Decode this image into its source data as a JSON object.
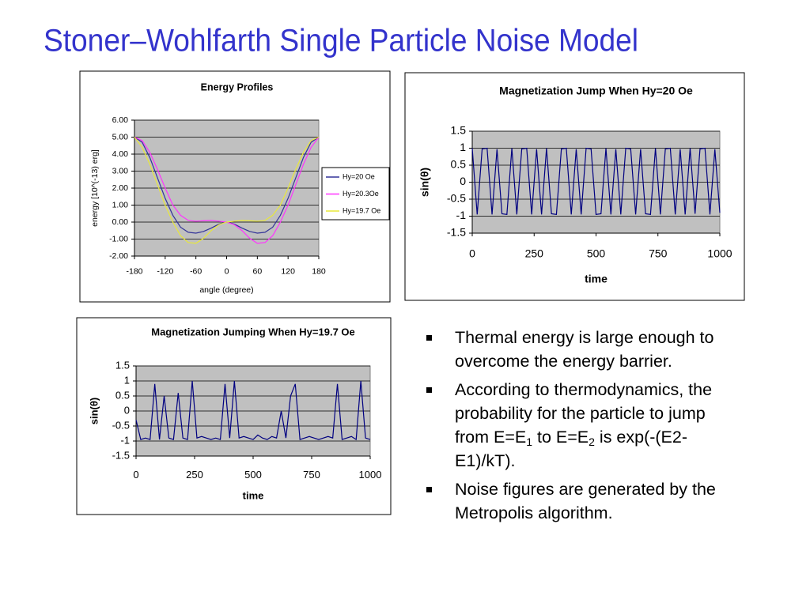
{
  "title": "Stoner–Wohlfarth Single Particle Noise Model",
  "chart_data": [
    {
      "type": "line",
      "title": "Energy Profiles",
      "x_label": "angle (degree)",
      "y_label": "energy [10^(-13) erg]",
      "x": [
        -180,
        -165,
        -150,
        -135,
        -120,
        -105,
        -90,
        -75,
        -60,
        -45,
        -30,
        -15,
        0,
        15,
        30,
        45,
        60,
        75,
        90,
        105,
        120,
        135,
        150,
        165,
        180
      ],
      "series": [
        {
          "name": "Hy=20 Oe",
          "color": "#333399",
          "values": [
            5.0,
            4.7,
            3.8,
            2.6,
            1.4,
            0.4,
            -0.3,
            -0.6,
            -0.65,
            -0.55,
            -0.35,
            -0.12,
            0,
            -0.12,
            -0.35,
            -0.55,
            -0.65,
            -0.6,
            -0.3,
            0.4,
            1.4,
            2.6,
            3.8,
            4.7,
            5.0
          ]
        },
        {
          "name": "Hy=20.3Oe",
          "color": "#ff33ff",
          "values": [
            5.0,
            4.8,
            4.1,
            3.1,
            2.0,
            1.0,
            0.4,
            0.1,
            0.05,
            0.08,
            0.1,
            0.05,
            0,
            -0.15,
            -0.5,
            -0.95,
            -1.25,
            -1.2,
            -0.8,
            0,
            1.0,
            2.2,
            3.4,
            4.4,
            5.0
          ]
        },
        {
          "name": "Hy=19.7 Oe",
          "color": "#e8e83a",
          "values": [
            5.0,
            4.4,
            3.4,
            2.2,
            1.0,
            0,
            -0.8,
            -1.2,
            -1.25,
            -0.95,
            -0.5,
            -0.15,
            0,
            0.05,
            0.1,
            0.08,
            0.05,
            0.1,
            0.4,
            1.0,
            2.0,
            3.1,
            4.1,
            4.8,
            5.0
          ]
        }
      ],
      "xlim": [
        -180,
        180
      ],
      "xticks": [
        -180,
        -120,
        -60,
        0,
        60,
        120,
        180
      ],
      "ylim": [
        -2,
        6
      ],
      "yticks": [
        {
          "value": -2,
          "label": "-2.00"
        },
        {
          "value": -1,
          "label": "-1.00"
        },
        {
          "value": 0,
          "label": "0.00"
        },
        {
          "value": 1,
          "label": "1.00"
        },
        {
          "value": 2,
          "label": "2.00"
        },
        {
          "value": 3,
          "label": "3.00"
        },
        {
          "value": 4,
          "label": "4.00"
        },
        {
          "value": 5,
          "label": "5.00"
        },
        {
          "value": 6,
          "label": "6.00"
        }
      ],
      "grid": true,
      "legend": "right"
    },
    {
      "type": "line",
      "title": "Magnetization Jump When Hy=20 Oe",
      "x_label": "time",
      "y_label": "sin(θ)",
      "x": [
        0,
        20,
        40,
        60,
        80,
        100,
        120,
        140,
        160,
        180,
        200,
        220,
        240,
        260,
        280,
        300,
        320,
        340,
        360,
        380,
        400,
        420,
        440,
        460,
        480,
        500,
        520,
        540,
        560,
        580,
        600,
        620,
        640,
        660,
        680,
        700,
        720,
        740,
        760,
        780,
        800,
        820,
        840,
        860,
        880,
        900,
        920,
        940,
        960,
        980,
        1000
      ],
      "series": [
        {
          "name": "sin(θ)",
          "color": "#000080",
          "values": [
            1,
            -0.95,
            0.98,
            1,
            -0.95,
            0.97,
            -0.93,
            -0.95,
            1,
            -0.95,
            0.98,
            1,
            -0.95,
            0.97,
            -0.95,
            1,
            -0.93,
            -0.95,
            0.98,
            1,
            -0.95,
            0.97,
            -0.95,
            1,
            0.98,
            -0.95,
            -0.93,
            1,
            -0.95,
            0.97,
            -0.95,
            1,
            0.98,
            -0.95,
            0.97,
            -0.93,
            -0.95,
            1,
            -0.95,
            0.98,
            1,
            -0.95,
            0.97,
            -0.95,
            1,
            -0.93,
            0.98,
            1,
            -0.95,
            0.97,
            -0.9
          ]
        }
      ],
      "xlim": [
        0,
        1000
      ],
      "xticks": [
        0,
        250,
        500,
        750,
        1000
      ],
      "ylim": [
        -1.5,
        1.5
      ],
      "yticks": [
        -1.5,
        -1,
        -0.5,
        0,
        0.5,
        1,
        1.5
      ],
      "grid": true
    },
    {
      "type": "line",
      "title": "Magnetization Jumping When Hy=19.7 Oe",
      "x_label": "time",
      "y_label": "sin(θ)",
      "x": [
        0,
        20,
        40,
        60,
        80,
        100,
        120,
        140,
        160,
        180,
        200,
        220,
        240,
        260,
        280,
        300,
        320,
        340,
        360,
        380,
        400,
        420,
        440,
        460,
        480,
        500,
        520,
        540,
        560,
        580,
        600,
        620,
        640,
        660,
        680,
        700,
        720,
        740,
        760,
        780,
        800,
        820,
        840,
        860,
        880,
        900,
        920,
        940,
        960,
        980,
        1000
      ],
      "series": [
        {
          "name": "sin(θ)",
          "color": "#000080",
          "values": [
            -0.3,
            -0.95,
            -0.9,
            -0.95,
            0.9,
            -0.95,
            0.5,
            -0.9,
            -0.95,
            0.6,
            -0.9,
            -0.95,
            1.0,
            -0.9,
            -0.85,
            -0.9,
            -0.95,
            -0.9,
            -0.95,
            0.9,
            -0.9,
            1.0,
            -0.9,
            -0.85,
            -0.9,
            -0.95,
            -0.8,
            -0.9,
            -0.95,
            -0.85,
            -0.9,
            0.0,
            -0.9,
            0.5,
            0.9,
            -0.95,
            -0.9,
            -0.85,
            -0.9,
            -0.95,
            -0.9,
            -0.85,
            -0.9,
            0.9,
            -0.95,
            -0.9,
            -0.85,
            -0.95,
            1.0,
            -0.9,
            -0.95
          ]
        }
      ],
      "xlim": [
        0,
        1000
      ],
      "xticks": [
        0,
        250,
        500,
        750,
        1000
      ],
      "ylim": [
        -1.5,
        1.5
      ],
      "yticks": [
        -1.5,
        -1,
        -0.5,
        0,
        0.5,
        1,
        1.5
      ],
      "grid": true
    }
  ],
  "bullets": [
    [
      {
        "text": "Thermal energy is large enough to overcome the energy barrier."
      }
    ],
    [
      {
        "text": "According to thermodynamics, the probability for the particle to jump from E=E"
      },
      {
        "sub": "1"
      },
      {
        "text": " to E=E"
      },
      {
        "sub": "2"
      },
      {
        "text": " is exp(-(E2-E1)/kT)."
      }
    ],
    [
      {
        "text": "Noise figures are generated by the Metropolis algorithm."
      }
    ]
  ]
}
